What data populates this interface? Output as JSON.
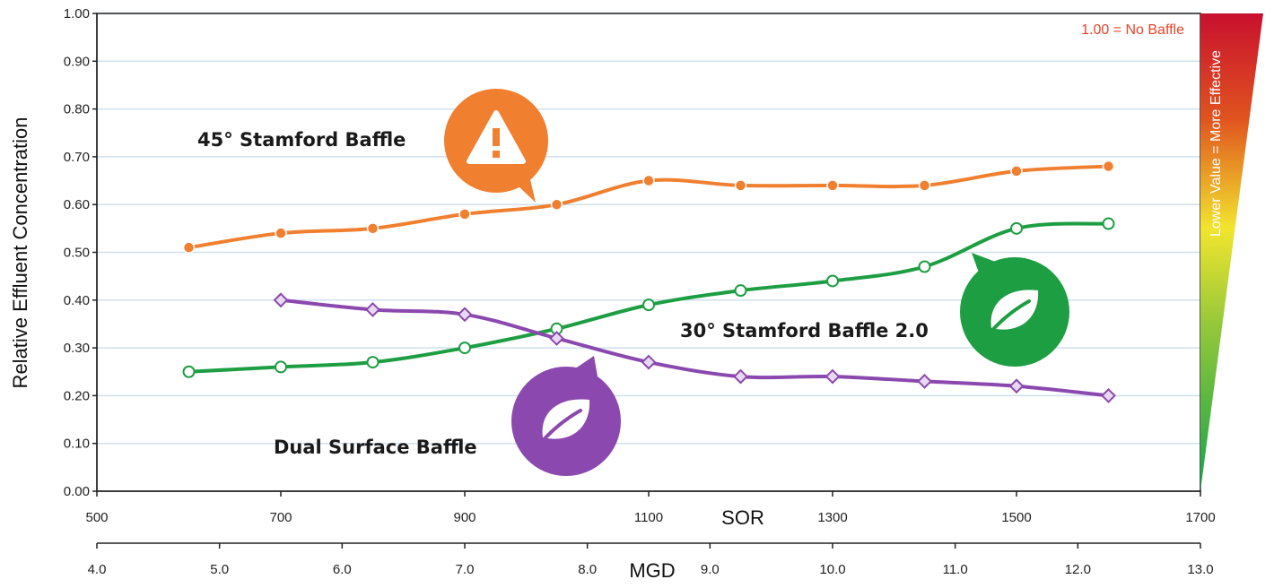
{
  "chart_data": {
    "type": "line",
    "ylabel": "Relative Effluent Concentration",
    "xlabel": "SOR",
    "x2label": "MGD",
    "xlim": [
      500,
      1700
    ],
    "ylim": [
      0,
      1.0
    ],
    "x_ticks": [
      "500",
      "700",
      "900",
      "1100",
      "1300",
      "1500",
      "1700"
    ],
    "x2_ticks": [
      "4.0",
      "5.0",
      "6.0",
      "7.0",
      "8.0",
      "9.0",
      "10.0",
      "11.0",
      "12.0",
      "13.0"
    ],
    "y_ticks": [
      "0.00",
      "0.10",
      "0.20",
      "0.30",
      "0.40",
      "0.50",
      "0.60",
      "0.70",
      "0.80",
      "0.90",
      "1.00"
    ],
    "grid": true,
    "annotation": "1.00 = No Baffle",
    "scale_bar_label": "Lower Value = More Effective",
    "series": [
      {
        "name": "45° Stamford Baffle",
        "color": "#F07F2F",
        "marker": "circle-filled",
        "icon": "warning-icon",
        "x": [
          600,
          700,
          800,
          900,
          1000,
          1100,
          1200,
          1300,
          1400,
          1500,
          1600
        ],
        "values": [
          0.51,
          0.54,
          0.55,
          0.58,
          0.6,
          0.65,
          0.64,
          0.64,
          0.64,
          0.67,
          0.68
        ]
      },
      {
        "name": "30° Stamford Baffle 2.0",
        "color": "#1E9E43",
        "marker": "circle-open",
        "icon": "leaf-icon",
        "x": [
          600,
          700,
          800,
          900,
          1000,
          1100,
          1200,
          1300,
          1400,
          1500,
          1600
        ],
        "values": [
          0.25,
          0.26,
          0.27,
          0.3,
          0.34,
          0.39,
          0.42,
          0.44,
          0.47,
          0.55,
          0.56
        ]
      },
      {
        "name": "Dual Surface Baffle",
        "color": "#8B48AE",
        "marker": "diamond",
        "icon": "leaf-icon",
        "x": [
          700,
          800,
          900,
          1000,
          1100,
          1200,
          1300,
          1400,
          1500,
          1600
        ],
        "values": [
          0.4,
          0.38,
          0.37,
          0.32,
          0.27,
          0.24,
          0.24,
          0.23,
          0.22,
          0.2
        ]
      }
    ]
  }
}
